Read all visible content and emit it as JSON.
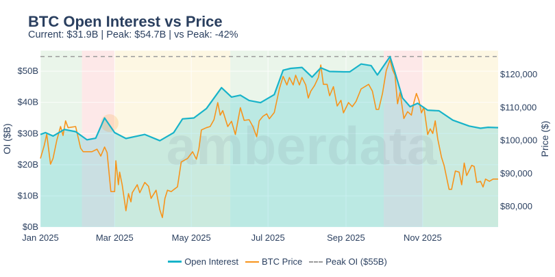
{
  "title": "BTC Open Interest vs Price",
  "subtitle": "Current: $31.9B | Peak: $54.7B | vs Peak: -42%",
  "watermark": "amberdata",
  "colors": {
    "oi": "#17b3c9",
    "oi_fill": "rgba(23,190,207,0.22)",
    "price": "#f7931a",
    "peak": "#9a9a9a",
    "green": "#eaf5ea",
    "red": "#fde8e8",
    "yellow": "#fdf7e3"
  },
  "chart_data": {
    "type": "line",
    "title": "BTC Open Interest vs Price",
    "xlim": [
      "2025-01-01",
      "2025-12-31"
    ],
    "x_ticks": [
      {
        "date": "2025-01-01",
        "label": "Jan 2025"
      },
      {
        "date": "2025-03-01",
        "label": "Mar 2025"
      },
      {
        "date": "2025-05-01",
        "label": "May 2025"
      },
      {
        "date": "2025-07-01",
        "label": "Jul 2025"
      },
      {
        "date": "2025-09-01",
        "label": "Sep 2025"
      },
      {
        "date": "2025-11-01",
        "label": "Nov 2025"
      }
    ],
    "y_left": {
      "label": "OI ($B)",
      "range": [
        0,
        56.6
      ],
      "ticks": [
        {
          "v": 0,
          "label": "$0B"
        },
        {
          "v": 10,
          "label": "$10B"
        },
        {
          "v": 20,
          "label": "$20B"
        },
        {
          "v": 30,
          "label": "$30B"
        },
        {
          "v": 40,
          "label": "$40B"
        },
        {
          "v": 50,
          "label": "$50B"
        }
      ]
    },
    "y_right": {
      "label": "Price ($)",
      "range": [
        73800,
        127250
      ],
      "ticks": [
        {
          "v": 80000,
          "label": "$80,000"
        },
        {
          "v": 90000,
          "label": "$90,000"
        },
        {
          "v": 100000,
          "label": "$100,000"
        },
        {
          "v": 110000,
          "label": "$110,000"
        },
        {
          "v": 120000,
          "label": "$120,000"
        }
      ]
    },
    "grid": true,
    "legend_placement": "bottom",
    "regions": [
      {
        "start": "2025-01-01",
        "end": "2025-02-03",
        "color": "green"
      },
      {
        "start": "2025-02-03",
        "end": "2025-03-01",
        "color": "red"
      },
      {
        "start": "2025-03-01",
        "end": "2025-06-01",
        "color": "yellow"
      },
      {
        "start": "2025-06-01",
        "end": "2025-10-01",
        "color": "green"
      },
      {
        "start": "2025-10-01",
        "end": "2025-11-01",
        "color": "red"
      },
      {
        "start": "2025-11-01",
        "end": "2025-12-31",
        "color": "yellow"
      }
    ],
    "peak_line": {
      "name": "Peak OI ($55B)",
      "value": 54.7
    },
    "series": [
      {
        "name": "Open Interest",
        "axis": "left",
        "points": [
          [
            "2025-01-01",
            29.7
          ],
          [
            "2025-01-05",
            30.3
          ],
          [
            "2025-01-11",
            29.2
          ],
          [
            "2025-01-20",
            31.3
          ],
          [
            "2025-01-29",
            30.6
          ],
          [
            "2025-02-07",
            28.0
          ],
          [
            "2025-02-14",
            28.5
          ],
          [
            "2025-02-21",
            35.0
          ],
          [
            "2025-03-01",
            30.3
          ],
          [
            "2025-03-10",
            28.4
          ],
          [
            "2025-03-25",
            29.7
          ],
          [
            "2025-04-06",
            27.7
          ],
          [
            "2025-04-17",
            30.3
          ],
          [
            "2025-04-24",
            34.7
          ],
          [
            "2025-05-03",
            35.0
          ],
          [
            "2025-05-13",
            38.0
          ],
          [
            "2025-05-25",
            44.7
          ],
          [
            "2025-06-02",
            41.7
          ],
          [
            "2025-06-09",
            42.3
          ],
          [
            "2025-06-16",
            40.6
          ],
          [
            "2025-06-25",
            39.9
          ],
          [
            "2025-07-06",
            42.5
          ],
          [
            "2025-07-13",
            50.3
          ],
          [
            "2025-07-19",
            50.9
          ],
          [
            "2025-07-28",
            51.2
          ],
          [
            "2025-08-05",
            48.1
          ],
          [
            "2025-08-12",
            51.1
          ],
          [
            "2025-08-19",
            49.9
          ],
          [
            "2025-08-30",
            49.8
          ],
          [
            "2025-09-04",
            49.8
          ],
          [
            "2025-09-13",
            52.3
          ],
          [
            "2025-09-21",
            51.8
          ],
          [
            "2025-09-26",
            48.8
          ],
          [
            "2025-10-06",
            54.7
          ],
          [
            "2025-10-10",
            49.6
          ],
          [
            "2025-10-16",
            41.4
          ],
          [
            "2025-10-22",
            38.6
          ],
          [
            "2025-10-28",
            39.7
          ],
          [
            "2025-11-05",
            37.5
          ],
          [
            "2025-11-14",
            37.3
          ],
          [
            "2025-11-25",
            34.3
          ],
          [
            "2025-12-08",
            32.4
          ],
          [
            "2025-12-17",
            31.7
          ],
          [
            "2025-12-23",
            32.0
          ],
          [
            "2025-12-31",
            31.9
          ]
        ]
      },
      {
        "name": "BTC Price",
        "axis": "right",
        "points": [
          [
            "2025-01-01",
            94570
          ],
          [
            "2025-01-04",
            98450
          ],
          [
            "2025-01-06",
            101970
          ],
          [
            "2025-01-09",
            92850
          ],
          [
            "2025-01-11",
            94570
          ],
          [
            "2025-01-14",
            100100
          ],
          [
            "2025-01-17",
            104250
          ],
          [
            "2025-01-19",
            101550
          ],
          [
            "2025-01-21",
            105970
          ],
          [
            "2025-01-23",
            103900
          ],
          [
            "2025-01-29",
            104250
          ],
          [
            "2025-02-02",
            97690
          ],
          [
            "2025-02-04",
            96640
          ],
          [
            "2025-02-11",
            96640
          ],
          [
            "2025-02-15",
            97400
          ],
          [
            "2025-02-18",
            95300
          ],
          [
            "2025-02-21",
            98030
          ],
          [
            "2025-02-23",
            96370
          ],
          [
            "2025-02-26",
            84560
          ],
          [
            "2025-03-01",
            84560
          ],
          [
            "2025-03-02",
            93890
          ],
          [
            "2025-03-04",
            86630
          ],
          [
            "2025-03-05",
            90430
          ],
          [
            "2025-03-07",
            86630
          ],
          [
            "2025-03-10",
            78760
          ],
          [
            "2025-03-12",
            83940
          ],
          [
            "2025-03-14",
            81450
          ],
          [
            "2025-03-15",
            84210
          ],
          [
            "2025-03-19",
            86630
          ],
          [
            "2025-03-21",
            84210
          ],
          [
            "2025-03-25",
            87320
          ],
          [
            "2025-03-28",
            86150
          ],
          [
            "2025-03-30",
            82490
          ],
          [
            "2025-04-03",
            84970
          ],
          [
            "2025-04-06",
            79030
          ],
          [
            "2025-04-08",
            76690
          ],
          [
            "2025-04-10",
            82490
          ],
          [
            "2025-04-12",
            84970
          ],
          [
            "2025-04-15",
            84560
          ],
          [
            "2025-04-20",
            86010
          ],
          [
            "2025-04-23",
            93530
          ],
          [
            "2025-04-28",
            94570
          ],
          [
            "2025-05-02",
            96640
          ],
          [
            "2025-05-05",
            94360
          ],
          [
            "2025-05-07",
            97400
          ],
          [
            "2025-05-09",
            103210
          ],
          [
            "2025-05-13",
            103900
          ],
          [
            "2025-05-16",
            104250
          ],
          [
            "2025-05-19",
            106320
          ],
          [
            "2025-05-22",
            111500
          ],
          [
            "2025-05-24",
            107710
          ],
          [
            "2025-05-26",
            109080
          ],
          [
            "2025-05-30",
            104250
          ],
          [
            "2025-06-02",
            105840
          ],
          [
            "2025-06-05",
            101820
          ],
          [
            "2025-06-09",
            109980
          ],
          [
            "2025-06-12",
            106120
          ],
          [
            "2025-06-16",
            106320
          ],
          [
            "2025-06-19",
            104250
          ],
          [
            "2025-06-22",
            101140
          ],
          [
            "2025-06-24",
            105970
          ],
          [
            "2025-06-27",
            107360
          ],
          [
            "2025-06-30",
            108100
          ],
          [
            "2025-07-02",
            106600
          ],
          [
            "2025-07-06",
            108500
          ],
          [
            "2025-07-10",
            115650
          ],
          [
            "2025-07-13",
            119440
          ],
          [
            "2025-07-16",
            116860
          ],
          [
            "2025-07-18",
            119100
          ],
          [
            "2025-07-21",
            116860
          ],
          [
            "2025-07-23",
            119790
          ],
          [
            "2025-07-26",
            116860
          ],
          [
            "2025-07-28",
            119100
          ],
          [
            "2025-07-31",
            116860
          ],
          [
            "2025-08-02",
            112890
          ],
          [
            "2025-08-04",
            114960
          ],
          [
            "2025-08-07",
            116680
          ],
          [
            "2025-08-10",
            119100
          ],
          [
            "2025-08-12",
            122900
          ],
          [
            "2025-08-14",
            117040
          ],
          [
            "2025-08-17",
            117040
          ],
          [
            "2025-08-19",
            113580
          ],
          [
            "2025-08-22",
            116330
          ],
          [
            "2025-08-25",
            110460
          ],
          [
            "2025-08-28",
            112190
          ],
          [
            "2025-08-30",
            108400
          ],
          [
            "2025-09-03",
            111500
          ],
          [
            "2025-09-06",
            110260
          ],
          [
            "2025-09-09",
            111850
          ],
          [
            "2025-09-13",
            115650
          ],
          [
            "2025-09-16",
            116330
          ],
          [
            "2025-09-19",
            117040
          ],
          [
            "2025-09-22",
            114960
          ],
          [
            "2025-09-25",
            109430
          ],
          [
            "2025-09-27",
            109430
          ],
          [
            "2025-09-30",
            114260
          ],
          [
            "2025-10-03",
            121180
          ],
          [
            "2025-10-06",
            124500
          ],
          [
            "2025-10-08",
            121510
          ],
          [
            "2025-10-10",
            119790
          ],
          [
            "2025-10-12",
            111150
          ],
          [
            "2025-10-14",
            114610
          ],
          [
            "2025-10-17",
            106670
          ],
          [
            "2025-10-20",
            108750
          ],
          [
            "2025-10-23",
            107710
          ],
          [
            "2025-10-25",
            111500
          ],
          [
            "2025-10-27",
            114260
          ],
          [
            "2025-10-29",
            112190
          ],
          [
            "2025-10-31",
            108400
          ],
          [
            "2025-11-02",
            110120
          ],
          [
            "2025-11-05",
            101820
          ],
          [
            "2025-11-07",
            103560
          ],
          [
            "2025-11-09",
            102170
          ],
          [
            "2025-11-11",
            105970
          ],
          [
            "2025-11-13",
            100450
          ],
          [
            "2025-11-16",
            94920
          ],
          [
            "2025-11-18",
            92500
          ],
          [
            "2025-11-22",
            85240
          ],
          [
            "2025-11-24",
            85240
          ],
          [
            "2025-11-27",
            90780
          ],
          [
            "2025-11-30",
            90430
          ],
          [
            "2025-12-02",
            86630
          ],
          [
            "2025-12-04",
            93200
          ],
          [
            "2025-12-06",
            89390
          ],
          [
            "2025-12-10",
            92500
          ],
          [
            "2025-12-12",
            92160
          ],
          [
            "2025-12-14",
            87320
          ],
          [
            "2025-12-17",
            87660
          ],
          [
            "2025-12-19",
            85950
          ],
          [
            "2025-12-21",
            88350
          ],
          [
            "2025-12-24",
            87660
          ],
          [
            "2025-12-27",
            88350
          ],
          [
            "2025-12-31",
            88350
          ]
        ]
      }
    ]
  },
  "legend": {
    "oi": "Open Interest",
    "price": "BTC Price",
    "peak": "Peak OI ($55B)"
  }
}
